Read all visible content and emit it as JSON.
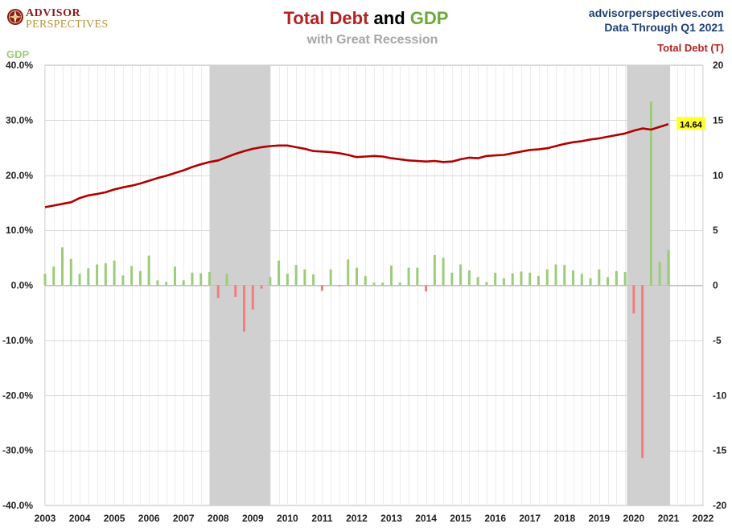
{
  "logo": {
    "line1": "ADVISOR",
    "line2": "PERSPECTIVES"
  },
  "header": {
    "title_part1": "Total Debt",
    "title_part2": "and",
    "title_part3": "GDP",
    "subtitle": "with Great Recession",
    "site": "advisorperspectives.com",
    "data_through": "Data Through Q1 2021"
  },
  "colors": {
    "debt_line": "#b00000",
    "gdp_positive": "#9ccc7a",
    "gdp_negative": "#f47c7c",
    "recession_band": "#d0d0d0",
    "callout_bg": "#ffff33"
  },
  "chart_data": {
    "type": "bar+line",
    "title": "Total Debt and GDP",
    "subtitle": "with Great Recession",
    "left_axis": {
      "label": "GDP",
      "range": [
        -40,
        40
      ],
      "ticks": [
        "40.0%",
        "30.0%",
        "20.0%",
        "10.0%",
        "0.0%",
        "-10.0%",
        "-20.0%",
        "-30.0%",
        "-40.0%"
      ]
    },
    "right_axis": {
      "label": "Total Debt (T)",
      "range": [
        -20,
        20
      ],
      "ticks": [
        "20",
        "15",
        "10",
        "5",
        "0",
        "-5",
        "-10",
        "-15",
        "-20"
      ]
    },
    "x_axis": {
      "range": [
        2003,
        2022
      ],
      "ticks": [
        "2003",
        "2004",
        "2005",
        "2006",
        "2007",
        "2008",
        "2009",
        "2010",
        "2011",
        "2012",
        "2013",
        "2014",
        "2015",
        "2016",
        "2017",
        "2018",
        "2019",
        "2020",
        "2021",
        "2022"
      ]
    },
    "recessions": [
      {
        "start": 2007.75,
        "end": 2009.5
      },
      {
        "start": 2019.8,
        "end": 2021.05
      }
    ],
    "gdp_series": {
      "name": "GDP",
      "start": 2003.0,
      "step": 0.25,
      "values": [
        2.1,
        3.4,
        6.9,
        4.8,
        2.1,
        3.1,
        3.8,
        4.0,
        4.5,
        1.8,
        3.5,
        2.6,
        5.4,
        0.9,
        0.6,
        3.4,
        0.9,
        2.3,
        2.2,
        2.4,
        -2.3,
        2.1,
        -2.1,
        -8.4,
        -4.4,
        -0.6,
        1.5,
        4.5,
        2.1,
        3.7,
        2.9,
        2.0,
        -1.0,
        2.9,
        -0.1,
        4.7,
        3.2,
        1.7,
        0.5,
        0.5,
        3.6,
        0.5,
        3.2,
        3.2,
        -1.1,
        5.5,
        5.0,
        2.3,
        3.8,
        2.7,
        1.5,
        0.6,
        2.3,
        1.3,
        2.2,
        2.5,
        2.3,
        1.7,
        2.9,
        3.8,
        3.7,
        2.7,
        2.1,
        1.3,
        2.9,
        1.5,
        2.6,
        2.4,
        -5.1,
        -31.4,
        33.4,
        4.3,
        6.4
      ]
    },
    "debt_series": {
      "name": "Total Debt",
      "start": 2003.0,
      "step": 0.25,
      "values": [
        7.1,
        7.25,
        7.4,
        7.55,
        7.93,
        8.17,
        8.3,
        8.45,
        8.71,
        8.9,
        9.05,
        9.25,
        9.5,
        9.75,
        9.95,
        10.2,
        10.45,
        10.75,
        11.0,
        11.2,
        11.35,
        11.65,
        11.95,
        12.2,
        12.4,
        12.55,
        12.65,
        12.7,
        12.7,
        12.55,
        12.4,
        12.2,
        12.15,
        12.1,
        12.0,
        11.85,
        11.65,
        11.7,
        11.75,
        11.7,
        11.55,
        11.45,
        11.35,
        11.3,
        11.25,
        11.3,
        11.2,
        11.25,
        11.45,
        11.6,
        11.55,
        11.75,
        11.8,
        11.85,
        12.0,
        12.15,
        12.3,
        12.35,
        12.45,
        12.65,
        12.85,
        13.0,
        13.1,
        13.25,
        13.35,
        13.5,
        13.65,
        13.8,
        14.05,
        14.25,
        14.15,
        14.4,
        14.64
      ]
    },
    "callout": {
      "label": "14.64",
      "x": 2021.0,
      "y": 14.64
    }
  }
}
